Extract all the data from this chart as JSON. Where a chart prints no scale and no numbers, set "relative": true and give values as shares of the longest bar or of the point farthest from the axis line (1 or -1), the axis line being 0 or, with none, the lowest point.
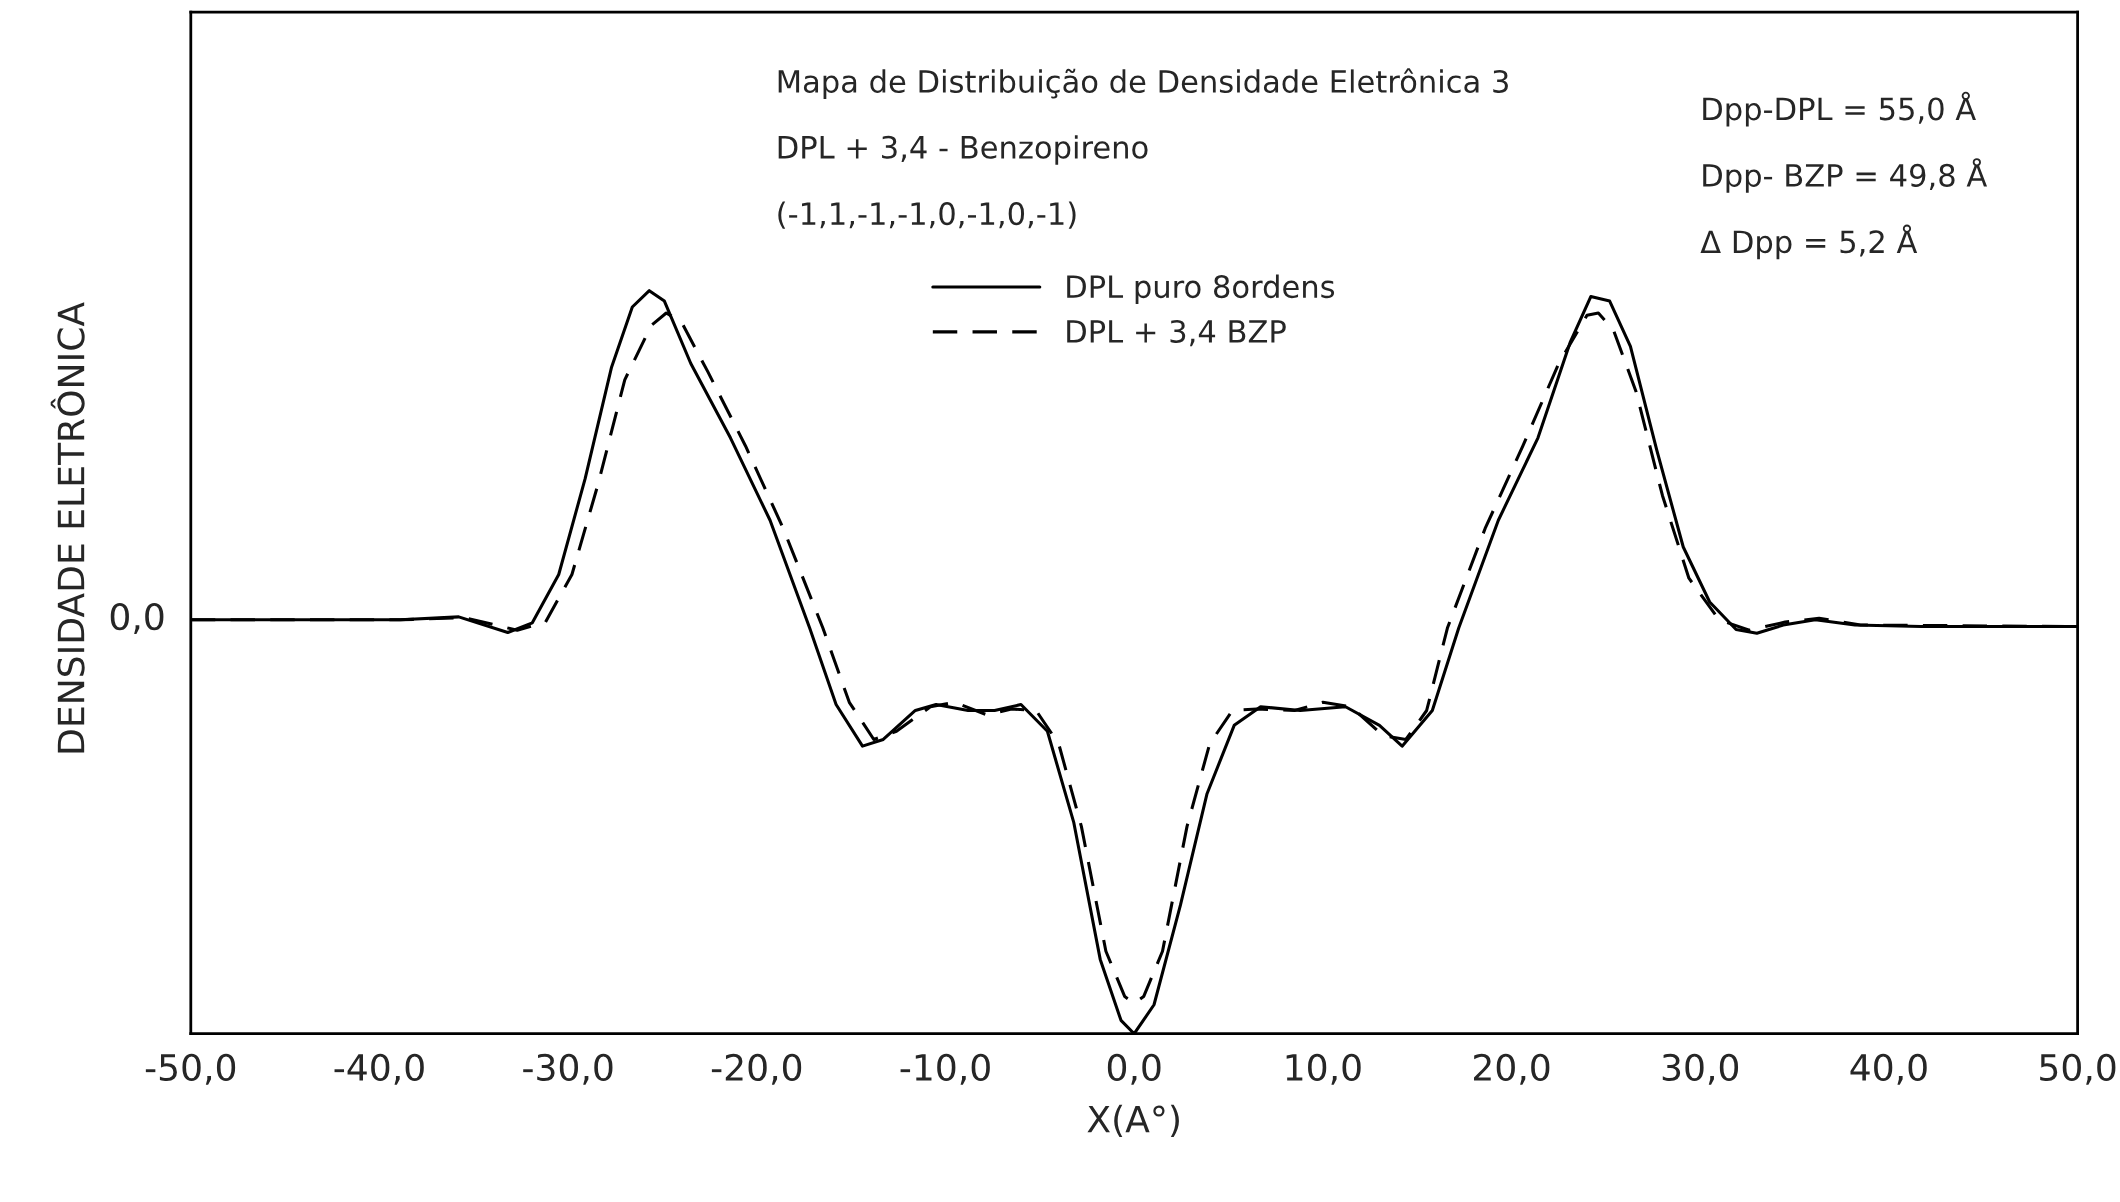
{
  "chart_data": {
    "type": "line",
    "title": "Mapa de Distribuição de Densidade Eletrônica 3",
    "subtitle": "DPL + 3,4 - Benzopireno",
    "xlabel": "X(A°)",
    "ylabel": "DENSIDADE ELETRÔNICA",
    "relative": true,
    "annotations": [
      "(-1,1,-1,-1,0,-1,0,-1)",
      "Dpp-DPL = 55,0 Å",
      "Dpp- BZP = 49,8 Å",
      "Δ Dpp = 5,2 Å",
      "0,0"
    ],
    "xlim": [
      -50,
      50
    ],
    "xticks": [
      {
        "value": -50,
        "label": "-50,0"
      },
      {
        "value": -40,
        "label": "-40,0"
      },
      {
        "value": -30,
        "label": "-30,0"
      },
      {
        "value": -20,
        "label": "-20,0"
      },
      {
        "value": -10,
        "label": "-10,0"
      },
      {
        "value": 0,
        "label": "0,0"
      },
      {
        "value": 10,
        "label": "10,0"
      },
      {
        "value": 20,
        "label": "20,0"
      },
      {
        "value": 30,
        "label": "30,0"
      },
      {
        "value": 40,
        "label": "40,0"
      },
      {
        "value": 50,
        "label": "50,0"
      }
    ],
    "grid": false,
    "legend": "top",
    "marker": "none",
    "series": [
      {
        "name": "DPL puro 8ordens",
        "color": "#000000",
        "line_style": "solid",
        "x": [
          -50,
          -38.9,
          -35.8,
          -33.2,
          -31.9,
          -30.5,
          -29.1,
          -27.7,
          -26.6,
          -25.7,
          -24.9,
          -23.5,
          -21.4,
          -19.3,
          -17.2,
          -15.8,
          -14.4,
          -13.3,
          -11.6,
          -10.5,
          -8.8,
          -7.4,
          -6.0,
          -4.6,
          -3.2,
          -1.8,
          -0.7,
          0,
          1.05,
          2.45,
          3.86,
          5.3,
          6.7,
          8.8,
          11.2,
          13.0,
          14.2,
          15.8,
          17.2,
          19.3,
          21.4,
          23.1,
          24.2,
          25.2,
          26.3,
          27.7,
          29.1,
          30.5,
          31.9,
          33.0,
          34.4,
          36.1,
          38.2,
          41.7,
          50
        ],
        "values": [
          0.557,
          0.557,
          0.561,
          0.54,
          0.553,
          0.618,
          0.747,
          0.897,
          0.978,
          1,
          0.986,
          0.902,
          0.802,
          0.691,
          0.546,
          0.443,
          0.387,
          0.396,
          0.435,
          0.443,
          0.435,
          0.435,
          0.443,
          0.407,
          0.284,
          0.1,
          0.018,
          0,
          0.039,
          0.173,
          0.323,
          0.415,
          0.44,
          0.435,
          0.44,
          0.415,
          0.387,
          0.435,
          0.546,
          0.691,
          0.802,
          0.93,
          0.992,
          0.986,
          0.925,
          0.785,
          0.655,
          0.581,
          0.544,
          0.539,
          0.55,
          0.557,
          0.55,
          0.548,
          0.548
        ]
      },
      {
        "name": "DPL + 3,4 BZP",
        "color": "#000000",
        "line_style": "dashed",
        "x": [
          -50,
          -38.9,
          -35.5,
          -32.7,
          -31.2,
          -29.8,
          -28.4,
          -27,
          -25.6,
          -24.8,
          -24,
          -22.6,
          -20.6,
          -18.6,
          -16.5,
          -15.1,
          -13.8,
          -12.6,
          -10.8,
          -9.5,
          -7.8,
          -6.5,
          -5.2,
          -4.0,
          -2.8,
          -1.5,
          -0.5,
          0,
          0.5,
          1.5,
          2.8,
          4,
          5.2,
          6.5,
          8.5,
          10,
          11.5,
          13.2,
          14.4,
          15.5,
          16.6,
          18.6,
          20.6,
          22.5,
          24,
          24.6,
          25.4,
          26.6,
          28,
          29.4,
          31,
          32.6,
          34.5,
          36.3,
          38.5,
          50
        ],
        "values": [
          0.557,
          0.557,
          0.56,
          0.543,
          0.554,
          0.618,
          0.741,
          0.88,
          0.953,
          0.97,
          0.958,
          0.891,
          0.791,
          0.68,
          0.546,
          0.446,
          0.396,
          0.407,
          0.44,
          0.446,
          0.429,
          0.437,
          0.435,
          0.39,
          0.279,
          0.111,
          0.05,
          0.041,
          0.05,
          0.111,
          0.279,
          0.39,
          0.435,
          0.437,
          0.435,
          0.446,
          0.44,
          0.401,
          0.396,
          0.435,
          0.546,
          0.68,
          0.791,
          0.902,
          0.967,
          0.97,
          0.947,
          0.864,
          0.724,
          0.613,
          0.557,
          0.543,
          0.554,
          0.559,
          0.55,
          0.548
        ]
      }
    ]
  }
}
